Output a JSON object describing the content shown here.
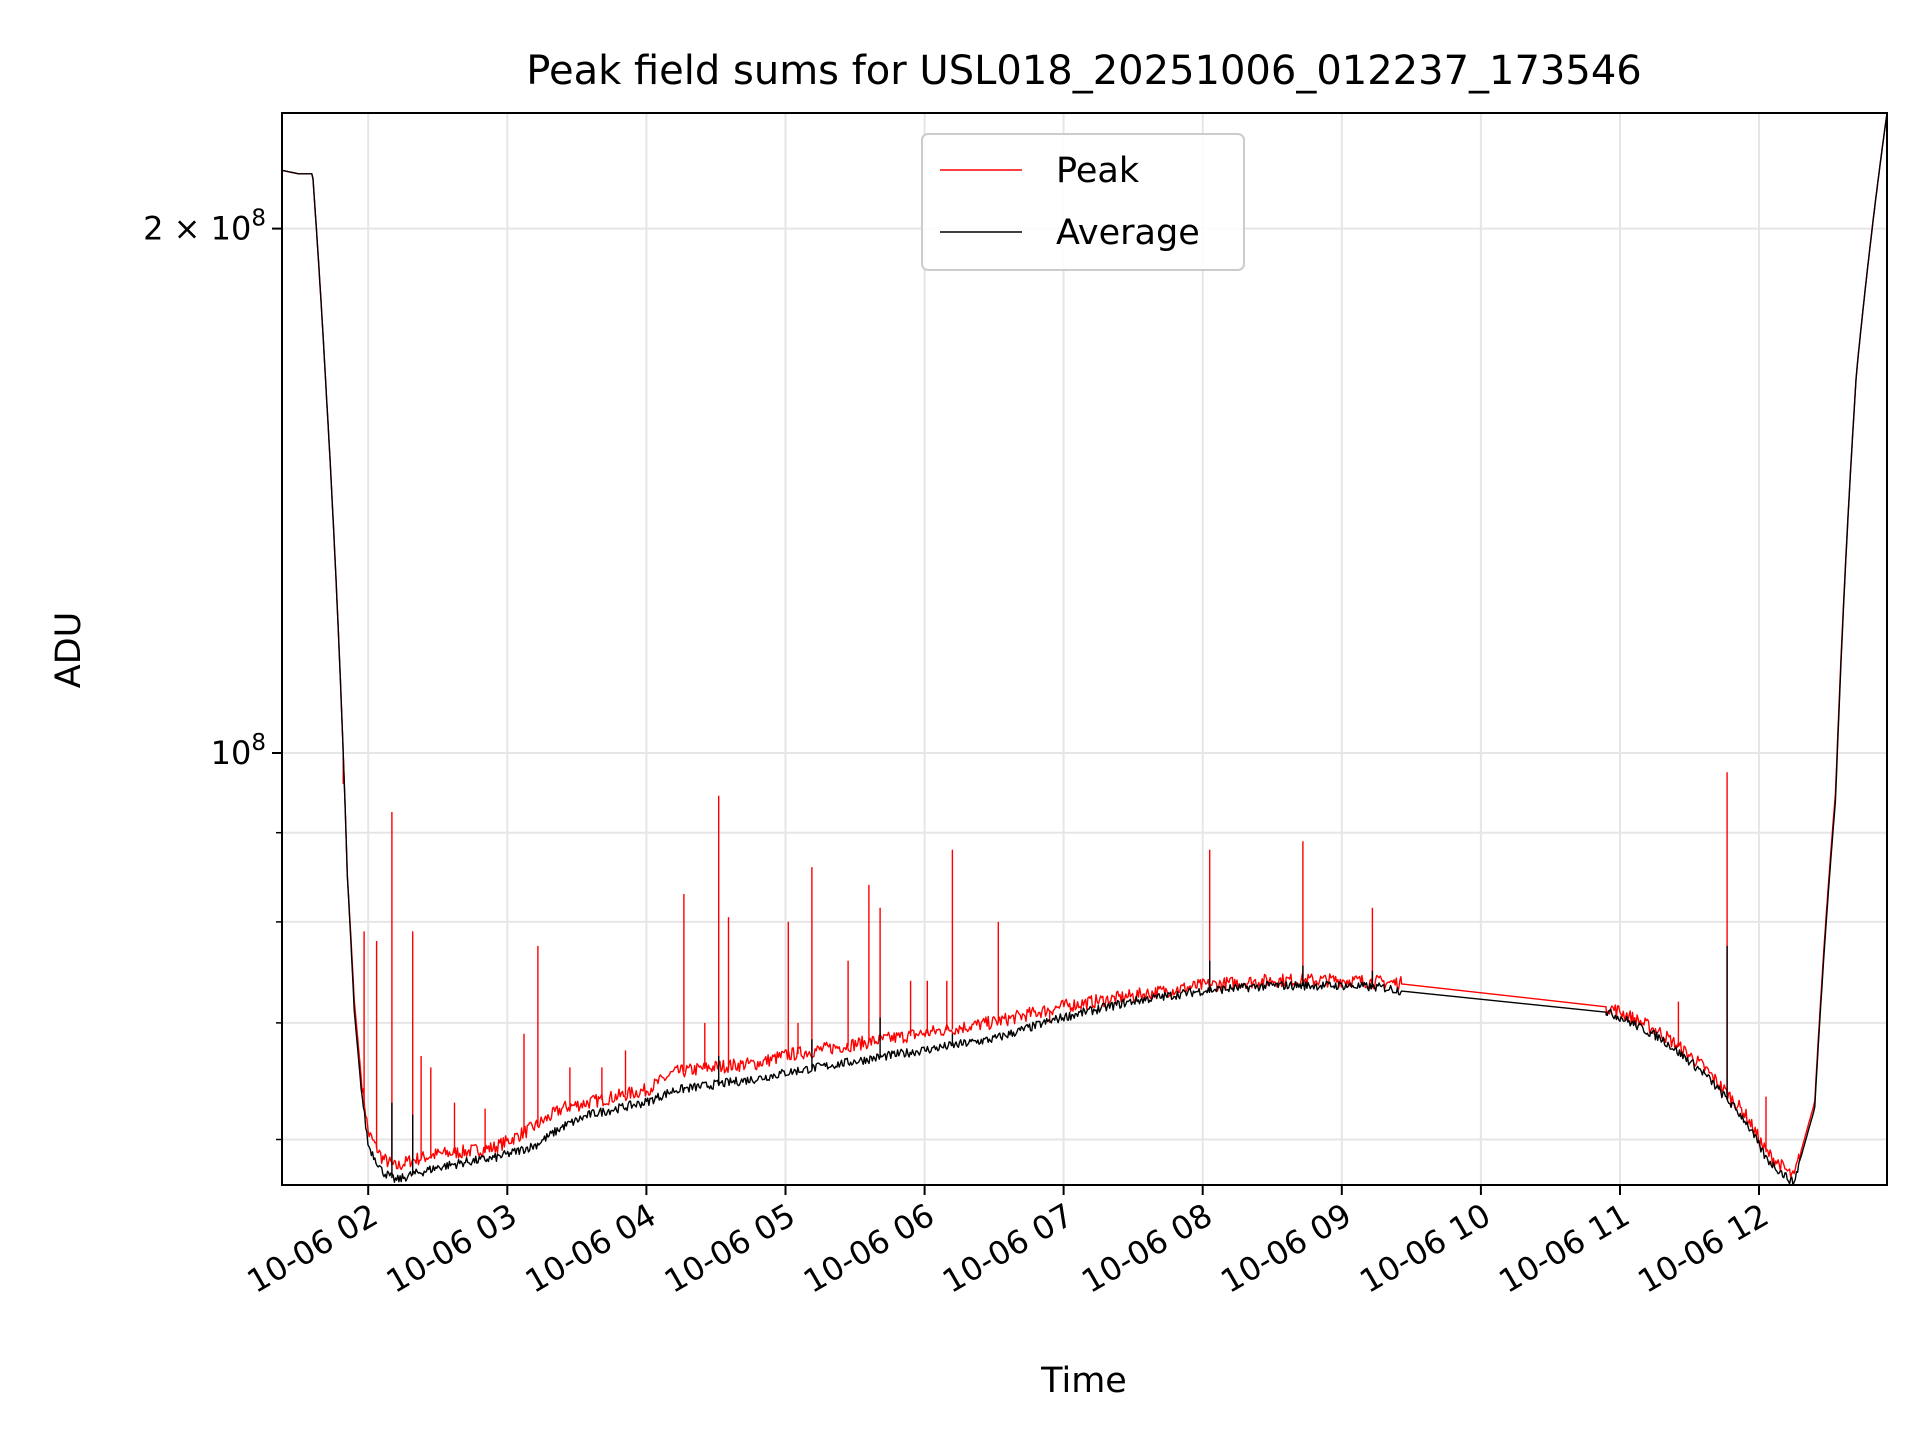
{
  "chart_data": {
    "type": "line",
    "title": "Peak field sums for USL018_20251006_012237_173546",
    "xlabel": "Time",
    "ylabel": "ADU",
    "yscale": "log",
    "ylim": [
      56500000,
      233000000
    ],
    "xlim": [
      1.38,
      12.92
    ],
    "x_unit": "hours since 2025-10-06 00:00",
    "grid": true,
    "legend_position": "upper center",
    "x_ticks": [
      {
        "value": 2,
        "label": "10-06 02"
      },
      {
        "value": 3,
        "label": "10-06 03"
      },
      {
        "value": 4,
        "label": "10-06 04"
      },
      {
        "value": 5,
        "label": "10-06 05"
      },
      {
        "value": 6,
        "label": "10-06 06"
      },
      {
        "value": 7,
        "label": "10-06 07"
      },
      {
        "value": 8,
        "label": "10-06 08"
      },
      {
        "value": 9,
        "label": "10-06 09"
      },
      {
        "value": 10,
        "label": "10-06 10"
      },
      {
        "value": 11,
        "label": "10-06 11"
      },
      {
        "value": 12,
        "label": "10-06 12"
      }
    ],
    "y_major_ticks": [
      {
        "value": 100000000,
        "label_base": "10",
        "label_exp": "8",
        "label_prefix": ""
      },
      {
        "value": 200000000,
        "label_base": "10",
        "label_exp": "8",
        "label_prefix": "2 × "
      }
    ],
    "y_minor_ticks": [
      60000000,
      70000000,
      80000000,
      90000000
    ],
    "series": [
      {
        "name": "Peak",
        "color": "#ff0000",
        "x": [
          1.38,
          1.5,
          1.6,
          1.7,
          1.8,
          1.85,
          1.9,
          1.95,
          2.0,
          2.1,
          2.2,
          2.3,
          2.5,
          2.7,
          2.9,
          3.0,
          3.2,
          3.4,
          3.6,
          3.8,
          4.0,
          4.2,
          4.5,
          4.8,
          5.0,
          5.5,
          6.0,
          6.5,
          7.0,
          7.5,
          8.0,
          8.5,
          9.0,
          9.3,
          9.43,
          9.9,
          10.5,
          10.9,
          11.0,
          11.3,
          11.6,
          11.9,
          12.05,
          12.15,
          12.25,
          12.4,
          12.55,
          12.7,
          12.92
        ],
        "y": [
          216000000,
          215000000,
          215000000,
          160000000,
          110000000,
          85000000,
          72000000,
          65000000,
          60500000,
          58500000,
          57800000,
          58300000,
          58800000,
          59000000,
          59300000,
          59800000,
          61000000,
          62500000,
          63000000,
          63500000,
          64000000,
          65500000,
          66000000,
          66300000,
          67000000,
          68000000,
          69000000,
          70000000,
          71500000,
          72500000,
          73500000,
          74000000,
          74000000,
          73800000,
          73700000,
          73000000,
          72000000,
          71500000,
          71000000,
          69000000,
          66000000,
          62000000,
          59000000,
          58000000,
          57000000,
          63000000,
          95000000,
          165000000,
          233000000
        ],
        "spikes": [
          {
            "x": 1.82,
            "y": 96000000
          },
          {
            "x": 1.97,
            "y": 79000000
          },
          {
            "x": 2.06,
            "y": 78000000
          },
          {
            "x": 2.17,
            "y": 92500000
          },
          {
            "x": 2.32,
            "y": 79000000
          },
          {
            "x": 2.38,
            "y": 67000000
          },
          {
            "x": 2.45,
            "y": 66000000
          },
          {
            "x": 2.62,
            "y": 63000000
          },
          {
            "x": 2.84,
            "y": 62500000
          },
          {
            "x": 3.12,
            "y": 69000000
          },
          {
            "x": 3.22,
            "y": 77500000
          },
          {
            "x": 3.45,
            "y": 66000000
          },
          {
            "x": 3.68,
            "y": 66000000
          },
          {
            "x": 3.85,
            "y": 67500000
          },
          {
            "x": 4.27,
            "y": 83000000
          },
          {
            "x": 4.42,
            "y": 70000000
          },
          {
            "x": 4.52,
            "y": 94500000
          },
          {
            "x": 4.59,
            "y": 80500000
          },
          {
            "x": 5.02,
            "y": 80000000
          },
          {
            "x": 5.09,
            "y": 70000000
          },
          {
            "x": 5.19,
            "y": 86000000
          },
          {
            "x": 5.45,
            "y": 76000000
          },
          {
            "x": 5.6,
            "y": 84000000
          },
          {
            "x": 5.68,
            "y": 81500000
          },
          {
            "x": 5.9,
            "y": 74000000
          },
          {
            "x": 6.02,
            "y": 74000000
          },
          {
            "x": 6.16,
            "y": 74000000
          },
          {
            "x": 6.2,
            "y": 88000000
          },
          {
            "x": 6.53,
            "y": 80000000
          },
          {
            "x": 6.9,
            "y": 70000000
          },
          {
            "x": 8.05,
            "y": 88000000
          },
          {
            "x": 8.72,
            "y": 89000000
          },
          {
            "x": 9.22,
            "y": 81500000
          },
          {
            "x": 11.42,
            "y": 72000000
          },
          {
            "x": 11.77,
            "y": 97500000
          },
          {
            "x": 12.05,
            "y": 63500000
          }
        ]
      },
      {
        "name": "Average",
        "color": "#000000",
        "x": [
          1.38,
          1.5,
          1.6,
          1.7,
          1.8,
          1.85,
          1.9,
          1.95,
          2.0,
          2.1,
          2.2,
          2.3,
          2.5,
          2.7,
          2.9,
          3.0,
          3.2,
          3.4,
          3.6,
          3.8,
          4.0,
          4.2,
          4.5,
          4.8,
          5.0,
          5.5,
          6.0,
          6.5,
          7.0,
          7.5,
          8.0,
          8.5,
          9.0,
          9.3,
          9.43,
          9.9,
          10.5,
          10.9,
          11.0,
          11.3,
          11.6,
          11.9,
          12.05,
          12.15,
          12.25,
          12.4,
          12.55,
          12.7,
          12.92
        ],
        "y": [
          216000000,
          215000000,
          215000000,
          160000000,
          110000000,
          85000000,
          71000000,
          64000000,
          59500000,
          57500000,
          56800000,
          57200000,
          57800000,
          58200000,
          58500000,
          58800000,
          59500000,
          61000000,
          62000000,
          62500000,
          63000000,
          64000000,
          64500000,
          65000000,
          65500000,
          66500000,
          67500000,
          68500000,
          70500000,
          72000000,
          73000000,
          73500000,
          73500000,
          73300000,
          73000000,
          72300000,
          71500000,
          71000000,
          70500000,
          68500000,
          65500000,
          61500000,
          58500000,
          57500000,
          56600000,
          62500000,
          94000000,
          165000000,
          233000000
        ],
        "spikes": [
          {
            "x": 2.17,
            "y": 63000000
          },
          {
            "x": 2.32,
            "y": 62000000
          },
          {
            "x": 4.52,
            "y": 67000000
          },
          {
            "x": 5.19,
            "y": 68500000
          },
          {
            "x": 5.68,
            "y": 70500000
          },
          {
            "x": 6.2,
            "y": 69000000
          },
          {
            "x": 8.05,
            "y": 76000000
          },
          {
            "x": 8.72,
            "y": 75500000
          },
          {
            "x": 9.22,
            "y": 75000000
          },
          {
            "x": 11.77,
            "y": 77500000
          }
        ]
      }
    ]
  }
}
